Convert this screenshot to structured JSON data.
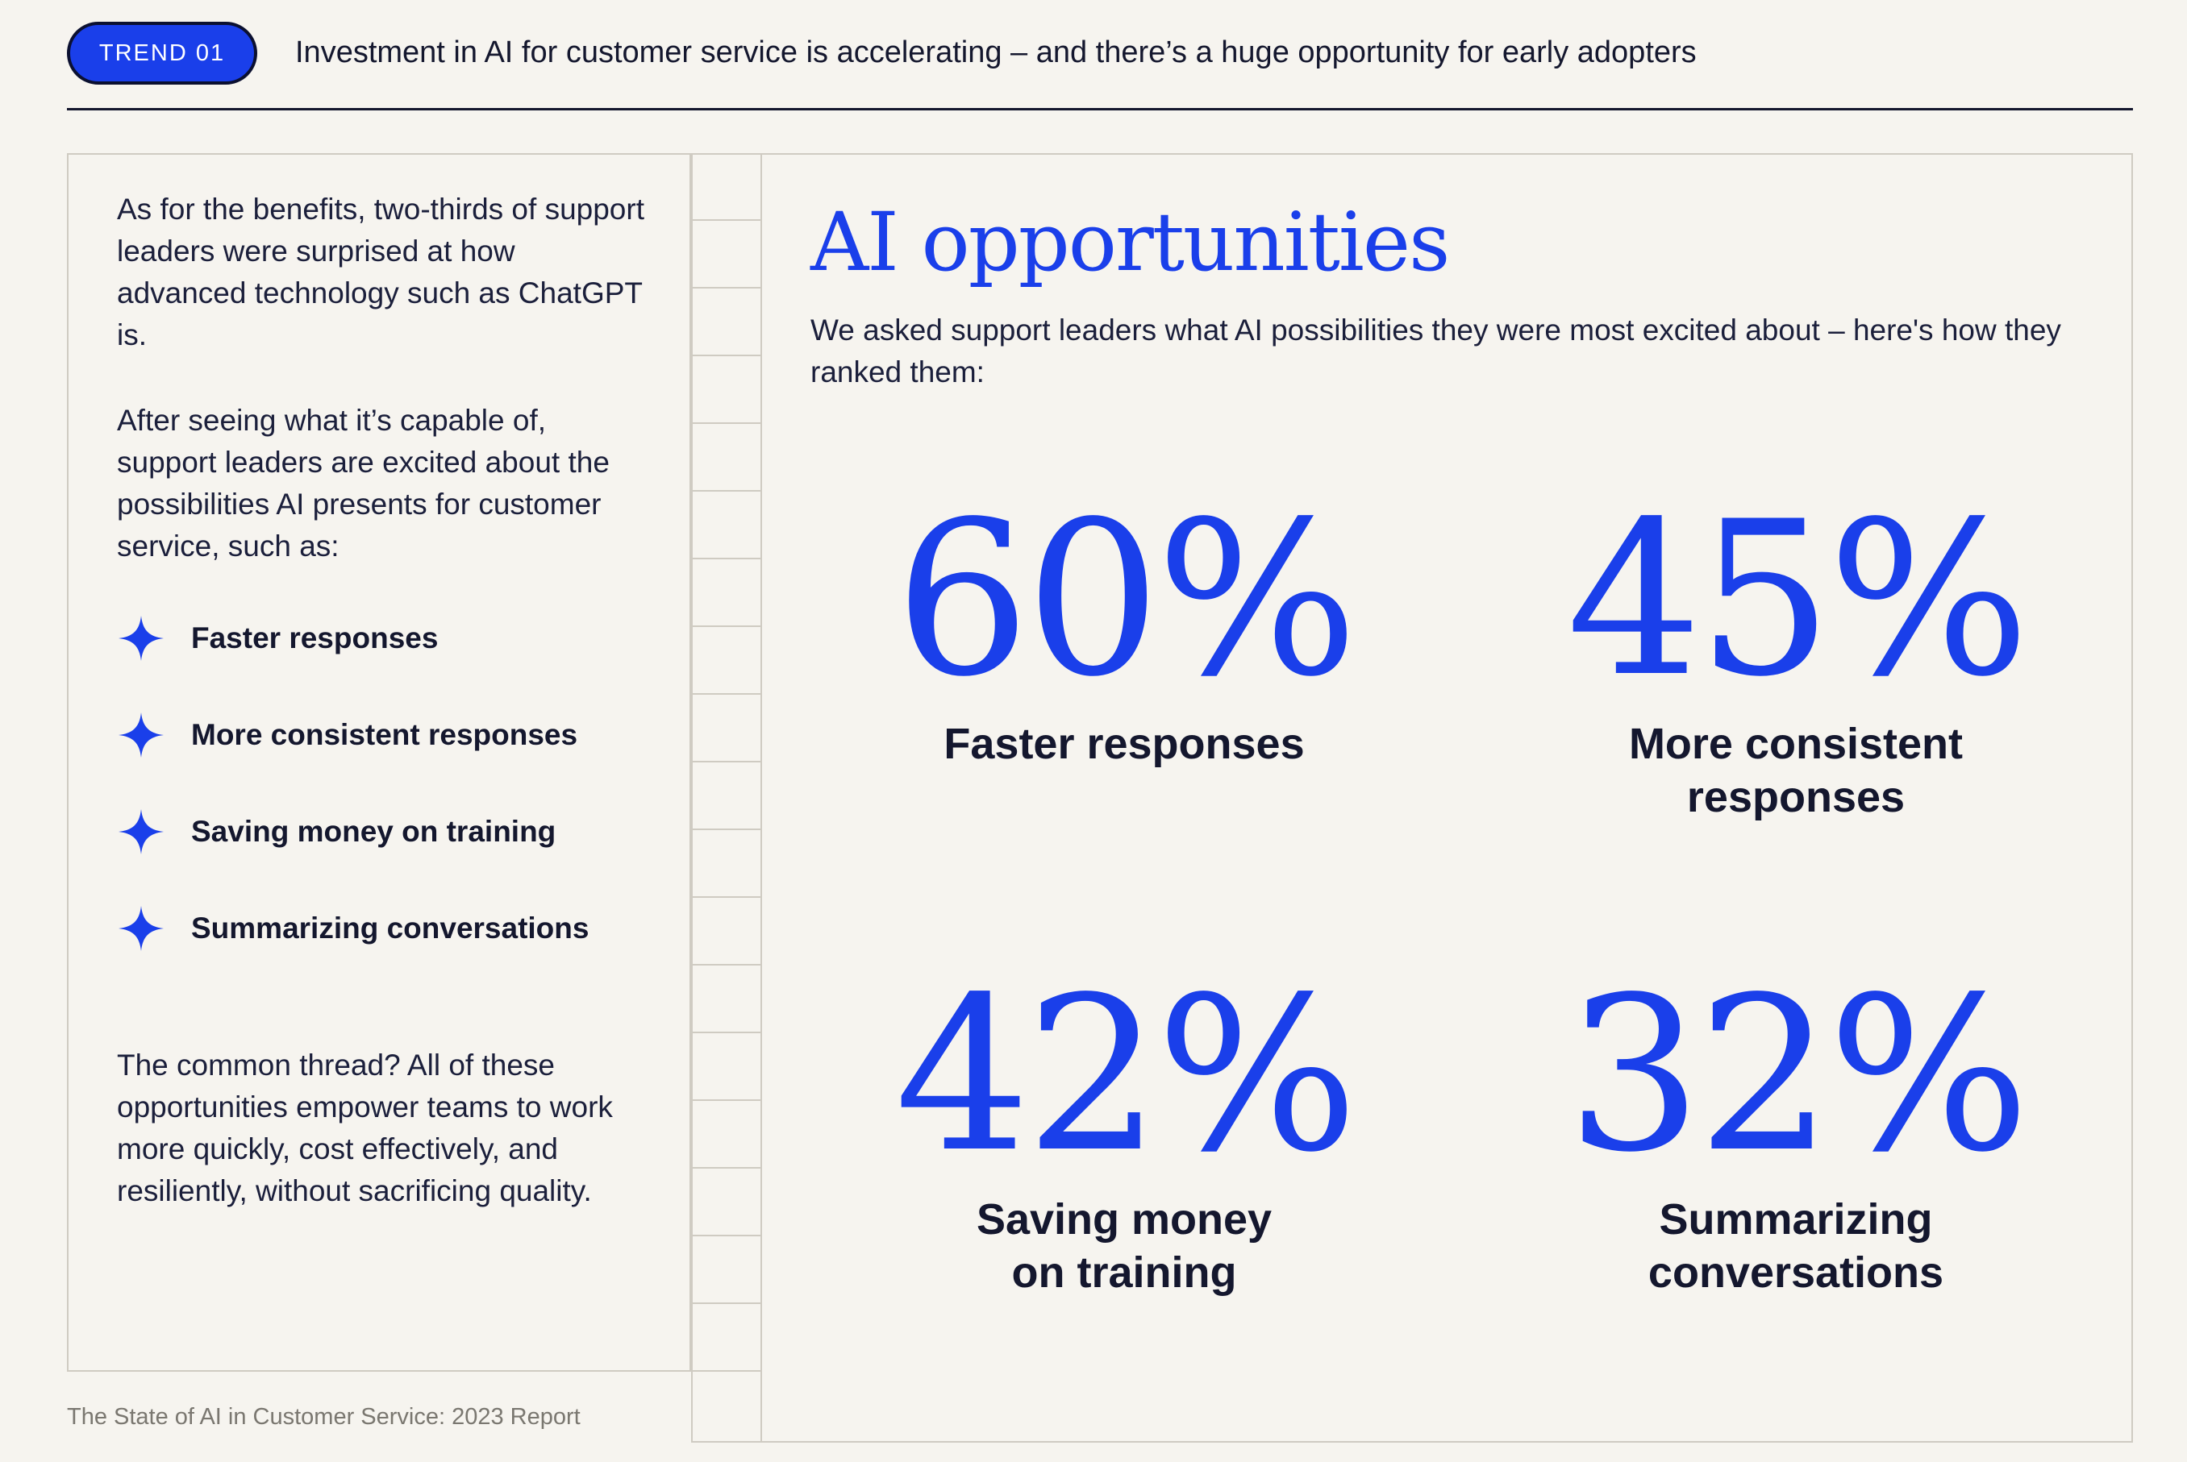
{
  "header": {
    "badge": "TREND 01",
    "headline": "Investment in AI for customer service is accelerating – and there’s a huge opportunity for early adopters"
  },
  "left": {
    "paragraph1": "As for the benefits, two-thirds of support leaders were surprised at how advanced technology such as ChatGPT is.",
    "paragraph2": "After seeing what it’s capable of, support leaders are excited about the possibilities AI presents for customer service, such as:",
    "bullets": [
      {
        "label": "Faster responses",
        "icon": "sparkle-icon"
      },
      {
        "label": "More consistent responses",
        "icon": "sparkle-icon"
      },
      {
        "label": "Saving money on training",
        "icon": "sparkle-icon"
      },
      {
        "label": "Summarizing conversations",
        "icon": "sparkle-icon"
      }
    ],
    "paragraph3": "The common thread? All of these opportunities empower teams to work more quickly, cost effectively, and resiliently, without sacrificing quality."
  },
  "right": {
    "title": "AI opportunities",
    "subtitle": "We asked support leaders what AI possibilities they were most excited about – here's how they ranked them:",
    "stats": [
      {
        "value": "60%",
        "caption": "Faster responses"
      },
      {
        "value": "45%",
        "caption": "More consistent responses"
      },
      {
        "value": "42%",
        "caption": "Saving money on training"
      },
      {
        "value": "32%",
        "caption": "Summarizing conversations"
      }
    ]
  },
  "footer": {
    "text": "The State of AI in Customer Service: 2023 Report"
  },
  "colors": {
    "accent": "#1a3fea",
    "background": "#f6f4ef",
    "text": "#1b1f3b"
  }
}
